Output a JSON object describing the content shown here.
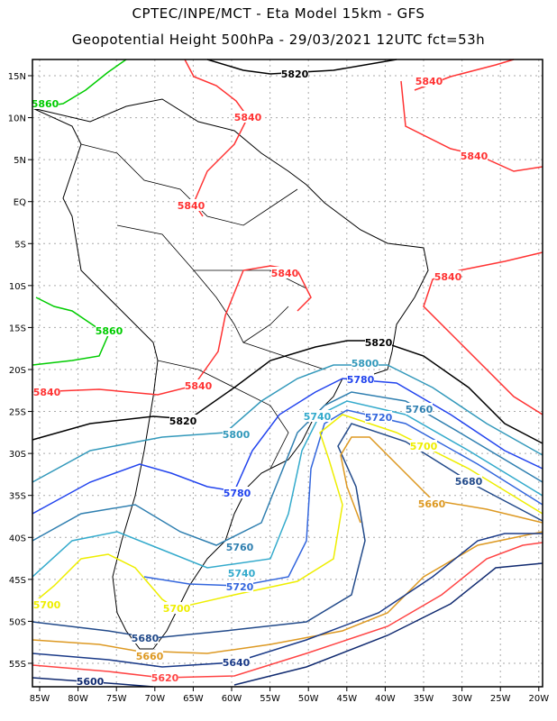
{
  "header": {
    "line1": "CPTEC/INPE/MCT -  Eta Model 15km - GFS",
    "line2": "Geopotential Height 500hPa - 29/03/2021 12UTC fct=53h"
  },
  "axes": {
    "lon_labels": [
      "85W",
      "80W",
      "75W",
      "70W",
      "65W",
      "60W",
      "55W",
      "50W",
      "45W",
      "40W",
      "35W",
      "30W",
      "25W",
      "20W"
    ],
    "lat_labels": [
      "15N",
      "10N",
      "5N",
      "EQ",
      "5S",
      "10S",
      "15S",
      "20S",
      "25S",
      "30S",
      "35S",
      "40S",
      "45S",
      "50S",
      "55S"
    ]
  },
  "contours": [
    {
      "level": "5860",
      "color": "#00cc00"
    },
    {
      "level": "5840",
      "color": "#ff3333"
    },
    {
      "level": "5820",
      "color": "#000000"
    },
    {
      "level": "5800",
      "color": "#3399bb"
    },
    {
      "level": "5780",
      "color": "#2244ee"
    },
    {
      "level": "5760",
      "color": "#2f7fb0"
    },
    {
      "level": "5740",
      "color": "#33aacc"
    },
    {
      "level": "5720",
      "color": "#3366dd"
    },
    {
      "level": "5700",
      "color": "#eeee00"
    },
    {
      "level": "5680",
      "color": "#224a8a"
    },
    {
      "level": "5660",
      "color": "#dd9922"
    },
    {
      "level": "5640",
      "color": "#1a3a88"
    },
    {
      "level": "5620",
      "color": "#ff4444"
    },
    {
      "level": "5600",
      "color": "#102a70"
    }
  ]
}
